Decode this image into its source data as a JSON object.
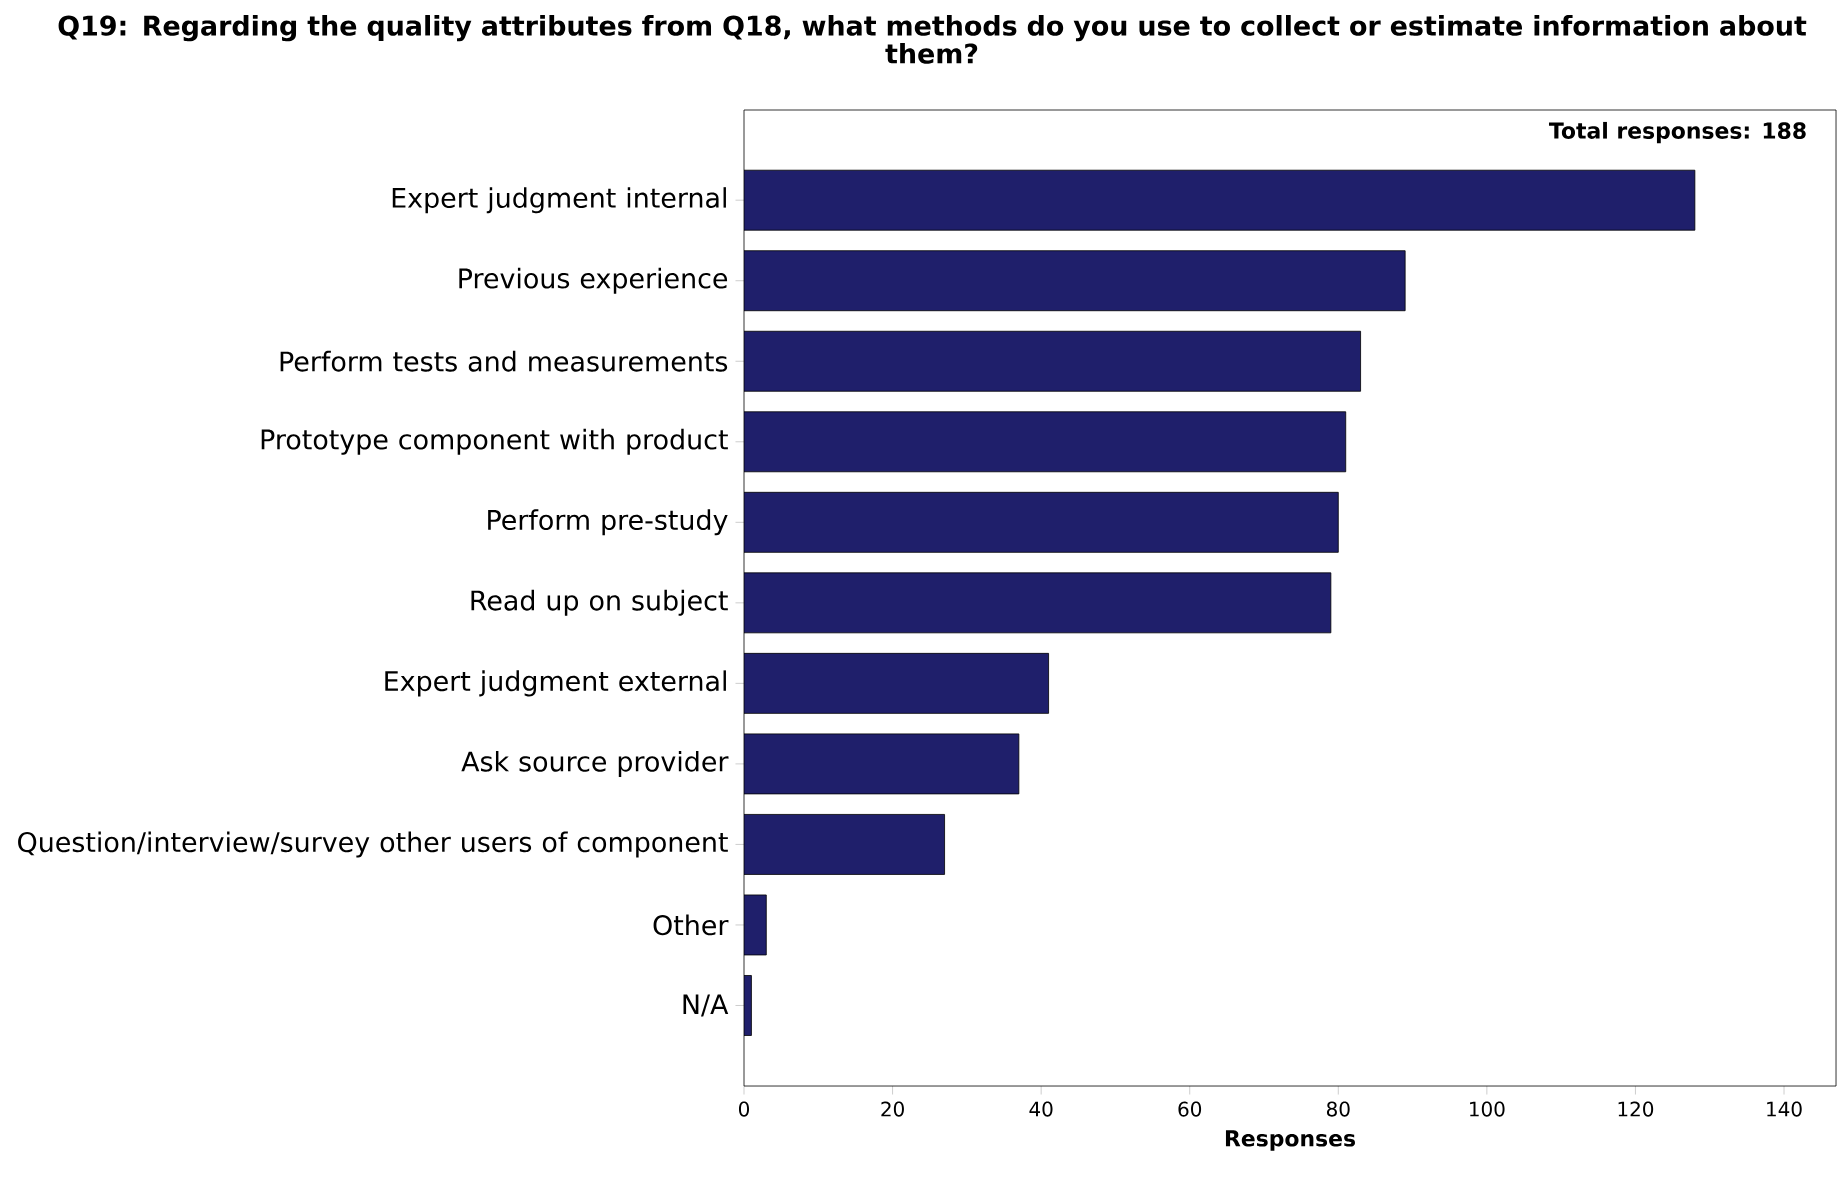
{
  "chart_data": {
    "type": "bar",
    "orientation": "horizontal",
    "title": "Q19: Regarding the quality attributes from Q18, what methods do you use to collect or estimate information about them?",
    "xlabel": "Responses",
    "categories": [
      "Expert judgment internal",
      "Previous experience",
      "Perform tests and measurements",
      "Prototype component with product",
      "Perform pre-study",
      "Read up on subject",
      "Expert judgment external",
      "Ask source provider",
      "Question/interview/survey other users of component",
      "Other",
      "N/A"
    ],
    "values": [
      128,
      89,
      83,
      81,
      80,
      79,
      41,
      37,
      27,
      3,
      1
    ],
    "color": "#1f1f6b",
    "xlim": [
      0,
      147
    ],
    "xticks": [
      0,
      20,
      40,
      60,
      80,
      100,
      120,
      140
    ],
    "annotations": [
      "Total responses: 188"
    ]
  }
}
